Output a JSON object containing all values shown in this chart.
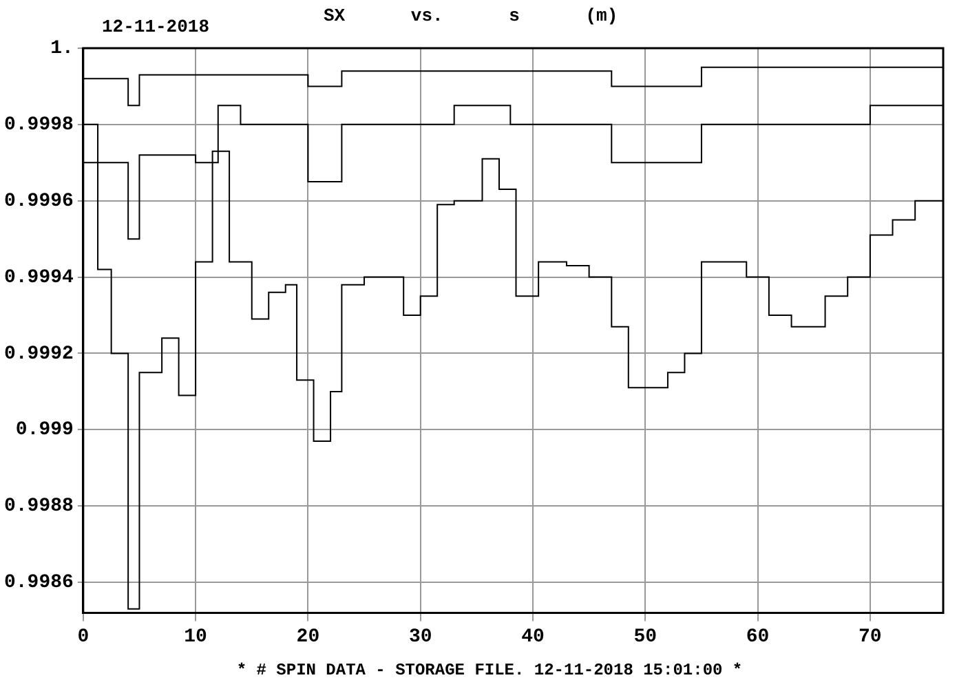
{
  "chart_data": {
    "type": "step",
    "title": "SX vs. s (m)",
    "subtitle": "12-11-2018",
    "annotations": [
      "* # SPIN DATA - STORAGE FILE. 12-11-2018 15:01:00 *"
    ],
    "xlim": [
      0,
      76.5
    ],
    "xticks": [
      0,
      10,
      20,
      30,
      40,
      50,
      60,
      70
    ],
    "ylim": [
      0.99852,
      1.0
    ],
    "yticks": [
      0.9986,
      0.9988,
      0.999,
      0.9992,
      0.9994,
      0.9996,
      0.9998,
      {
        "value": 1.0,
        "label": "1."
      }
    ],
    "grid": true,
    "legend": false,
    "marker": "none",
    "series": [
      {
        "color": "#000000",
        "x": [
          0,
          1.3,
          2.5,
          4,
          5,
          7,
          8.5,
          10,
          11.5,
          13,
          15,
          16.5,
          18,
          19,
          20.5,
          22,
          23,
          25,
          27,
          28.5,
          30,
          31.5,
          33,
          35.5,
          37,
          38.5,
          40.5,
          43,
          45,
          47,
          48.5,
          50,
          52,
          53.5,
          55,
          57,
          59,
          61,
          63,
          66,
          68,
          70,
          72,
          74,
          76.5
        ],
        "values": [
          0.9998,
          0.99942,
          0.9992,
          0.99853,
          0.99915,
          0.99924,
          0.99909,
          0.99944,
          0.99973,
          0.99944,
          0.99929,
          0.99936,
          0.99938,
          0.99913,
          0.99897,
          0.9991,
          0.99938,
          0.9994,
          0.9994,
          0.9993,
          0.99935,
          0.99959,
          0.9996,
          0.99971,
          0.99963,
          0.99935,
          0.99944,
          0.99943,
          0.9994,
          0.99927,
          0.99911,
          0.99911,
          0.99915,
          0.9992,
          0.99944,
          0.99944,
          0.9994,
          0.9993,
          0.99927,
          0.99935,
          0.9994,
          0.99951,
          0.99955,
          0.9996,
          0.9996
        ]
      },
      {
        "color": "#000000",
        "x": [
          0,
          4,
          5,
          10,
          12,
          14,
          20,
          23,
          33,
          38,
          47,
          55,
          70,
          76.5
        ],
        "values": [
          0.9997,
          0.9995,
          0.99972,
          0.9997,
          0.99985,
          0.9998,
          0.99965,
          0.9998,
          0.99985,
          0.9998,
          0.9997,
          0.9998,
          0.99985,
          0.99985
        ]
      },
      {
        "color": "#000000",
        "x": [
          0,
          4,
          5,
          20,
          23,
          47,
          55,
          76.5
        ],
        "values": [
          0.99992,
          0.99985,
          0.99993,
          0.9999,
          0.99994,
          0.9999,
          0.99995,
          0.99995
        ]
      }
    ]
  }
}
